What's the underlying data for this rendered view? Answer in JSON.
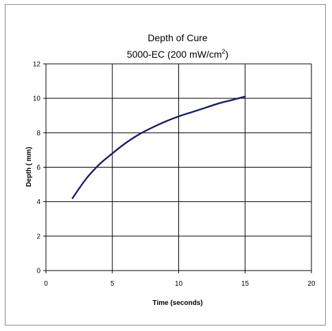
{
  "chart_data": {
    "type": "line",
    "title": "Depth of Cure",
    "subtitle_prefix": "5000-EC (200 mW/cm",
    "subtitle_superscript": "2",
    "subtitle_suffix": ")",
    "xlabel": "Time (seconds)",
    "ylabel": "Depth ( mm)",
    "xlim": [
      0,
      20
    ],
    "ylim": [
      0,
      12
    ],
    "x_ticks": [
      0,
      5,
      10,
      15,
      20
    ],
    "y_ticks": [
      0,
      2,
      4,
      6,
      8,
      10,
      12
    ],
    "grid": true,
    "line_color": "#1a1a6e",
    "series": [
      {
        "x": [
          2,
          3,
          4,
          5,
          6,
          7,
          8,
          9,
          10,
          11,
          12,
          13,
          14,
          15
        ],
        "y": [
          4.2,
          5.3,
          6.15,
          6.8,
          7.4,
          7.9,
          8.3,
          8.65,
          8.95,
          9.2,
          9.45,
          9.7,
          9.9,
          10.1
        ]
      }
    ]
  }
}
